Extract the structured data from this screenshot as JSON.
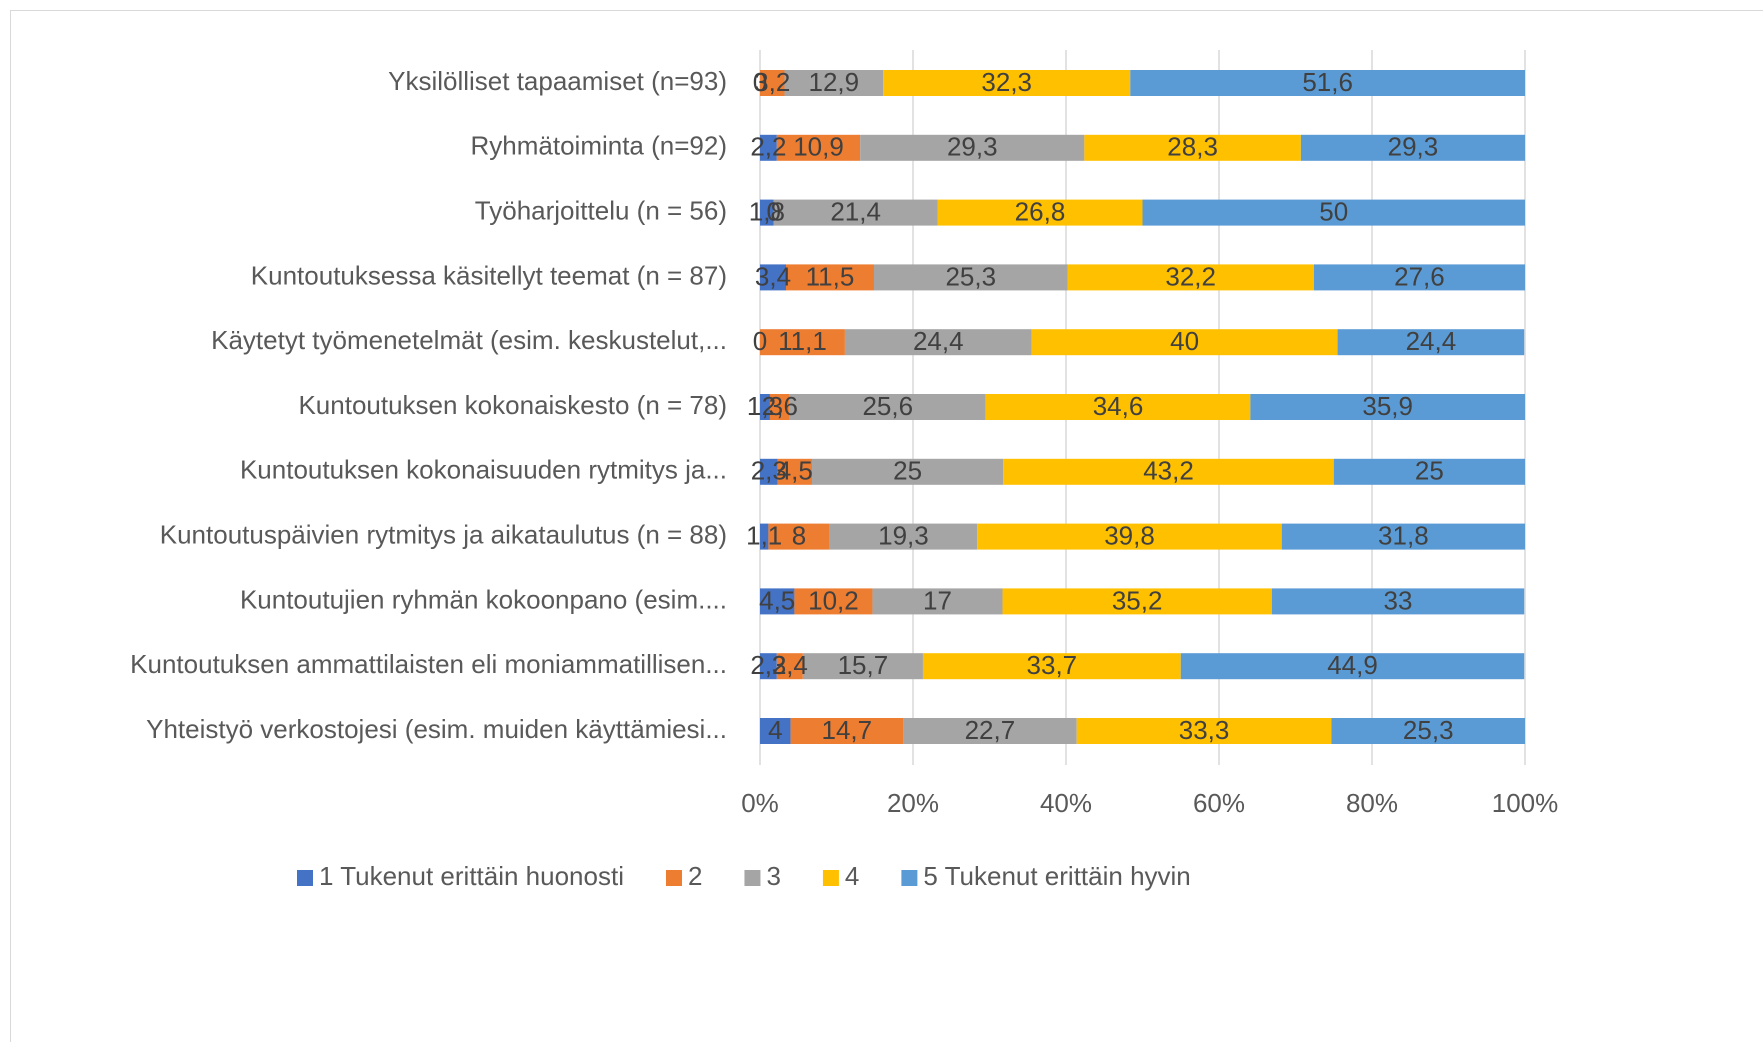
{
  "chart_data": {
    "type": "stacked-bar-horizontal",
    "categories": [
      "Yksilölliset tapaamiset (n=93)",
      "Ryhmätoiminta (n=92)",
      "Työharjoittelu (n = 56)",
      "Kuntoutuksessa käsitellyt teemat (n = 87)",
      "Käytetyt työmenetelmät (esim. keskustelut,...",
      "Kuntoutuksen kokonaiskesto (n = 78)",
      "Kuntoutuksen kokonaisuuden rytmitys ja...",
      "Kuntoutuspäivien rytmitys ja aikataulutus (n = 88)",
      "Kuntoutujien ryhmän kokoonpano (esim....",
      "Kuntoutuksen ammattilaisten eli moniammatillisen...",
      "Yhteistyö verkostojesi (esim. muiden käyttämiesi..."
    ],
    "series": [
      {
        "name": "1 Tukenut erittäin huonosti",
        "color": "#4472c4",
        "values": [
          0,
          2.2,
          1.8,
          3.4,
          0,
          1.3,
          2.3,
          1.1,
          4.5,
          2.2,
          4
        ],
        "value_labels": [
          "0",
          "2,2",
          "1,8",
          "3,4",
          "0",
          "1,3",
          "2,3",
          "1,1",
          "4,5",
          "2,2",
          "4"
        ]
      },
      {
        "name": "2",
        "color": "#ed7d31",
        "values": [
          3.2,
          10.9,
          0,
          11.5,
          11.1,
          2.6,
          4.5,
          8,
          10.2,
          3.4,
          14.7
        ],
        "value_labels": [
          "3,2",
          "10,9",
          "0",
          "11,5",
          "11,1",
          "2,6",
          "4,5",
          "8",
          "10,2",
          "3,4",
          "14,7"
        ]
      },
      {
        "name": "3",
        "color": "#a5a5a5",
        "values": [
          12.9,
          29.3,
          21.4,
          25.3,
          24.4,
          25.6,
          25,
          19.3,
          17,
          15.7,
          22.7
        ],
        "value_labels": [
          "12,9",
          "29,3",
          "21,4",
          "25,3",
          "24,4",
          "25,6",
          "25",
          "19,3",
          "17",
          "15,7",
          "22,7"
        ]
      },
      {
        "name": "4",
        "color": "#ffc000",
        "values": [
          32.3,
          28.3,
          26.8,
          32.2,
          40,
          34.6,
          43.2,
          39.8,
          35.2,
          33.7,
          33.3
        ],
        "value_labels": [
          "32,3",
          "28,3",
          "26,8",
          "32,2",
          "40",
          "34,6",
          "43,2",
          "39,8",
          "35,2",
          "33,7",
          "33,3"
        ]
      },
      {
        "name": "5 Tukenut erittäin hyvin",
        "color": "#5b9bd5",
        "values": [
          51.6,
          29.3,
          50,
          27.6,
          24.4,
          35.9,
          25,
          31.8,
          33,
          44.9,
          25.3
        ],
        "value_labels": [
          "51,6",
          "29,3",
          "50",
          "27,6",
          "24,4",
          "35,9",
          "25",
          "31,8",
          "33",
          "44,9",
          "25,3"
        ]
      }
    ],
    "xlim": [
      0,
      100
    ],
    "xticks": [
      {
        "value": 0,
        "label": "0%"
      },
      {
        "value": 20,
        "label": "20%"
      },
      {
        "value": 40,
        "label": "40%"
      },
      {
        "value": 60,
        "label": "60%"
      },
      {
        "value": 80,
        "label": "80%"
      },
      {
        "value": 100,
        "label": "100%"
      }
    ],
    "grid": true,
    "legend": "bottom"
  }
}
